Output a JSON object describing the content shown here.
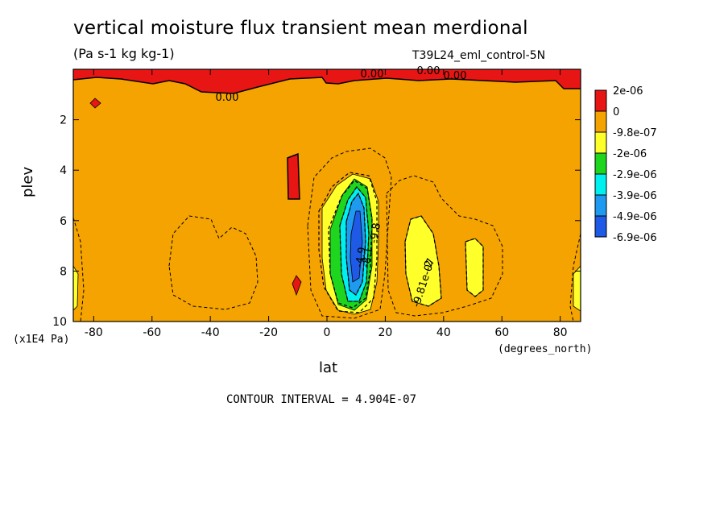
{
  "chart_data": {
    "type": "heatmap",
    "title": "vertical moisture flux transient mean merdional",
    "subtitle": "(Pa s-1 kg kg-1)",
    "run_label": "T39L24_eml_control-5N",
    "xlabel": "lat",
    "ylabel": "plev",
    "x_unit": "(degrees_north)",
    "y_unit": "(x1E4 Pa)",
    "xlim": [
      -87,
      87
    ],
    "ylim": [
      10,
      0
    ],
    "x_ticks": [
      -80,
      -60,
      -40,
      -20,
      0,
      20,
      40,
      60,
      80
    ],
    "x_tick_labels": [
      "-80",
      "-60",
      "-40",
      "-20",
      "0",
      "20",
      "40",
      "60",
      "80"
    ],
    "y_ticks": [
      2,
      4,
      6,
      8,
      10
    ],
    "y_tick_labels": [
      "2",
      "4",
      "6",
      "8",
      "10"
    ],
    "contour_interval_text": "CONTOUR INTERVAL = 4.904E-07",
    "legend": {
      "placement": "right",
      "levels": [
        "2e-06",
        "0",
        "-9.8e-07",
        "-2e-06",
        "-2.9e-06",
        "-3.9e-06",
        "-4.9e-06",
        "-6.9e-06"
      ],
      "colors": [
        "#e81515",
        "#f5a300",
        "#ffff2a",
        "#1ed61e",
        "#00f0f0",
        "#1e9bf0",
        "#1e5ae6"
      ]
    },
    "contour_labels": [
      "0.00",
      "0.00",
      "0.00",
      "0.00",
      "-9.81e-07",
      "-9.8",
      "-8.1",
      "-4.9",
      "-2"
    ],
    "regions": [
      {
        "name": "top-band-positive",
        "color": "#e81515"
      },
      {
        "name": "mid-positive-15S",
        "color": "#e81515"
      },
      {
        "name": "equatorial-negative-yellow",
        "color": "#ffff2a"
      },
      {
        "name": "equatorial-negative-green",
        "color": "#1ed61e"
      },
      {
        "name": "equatorial-negative-cyan",
        "color": "#00f0f0"
      },
      {
        "name": "equatorial-negative-blue",
        "color": "#1e9bf0"
      },
      {
        "name": "equatorial-core-min",
        "color": "#1e5ae6"
      },
      {
        "name": "subtropical-negative-30N",
        "color": "#ffff2a"
      },
      {
        "name": "negative-50N",
        "color": "#ffff2a"
      }
    ]
  }
}
